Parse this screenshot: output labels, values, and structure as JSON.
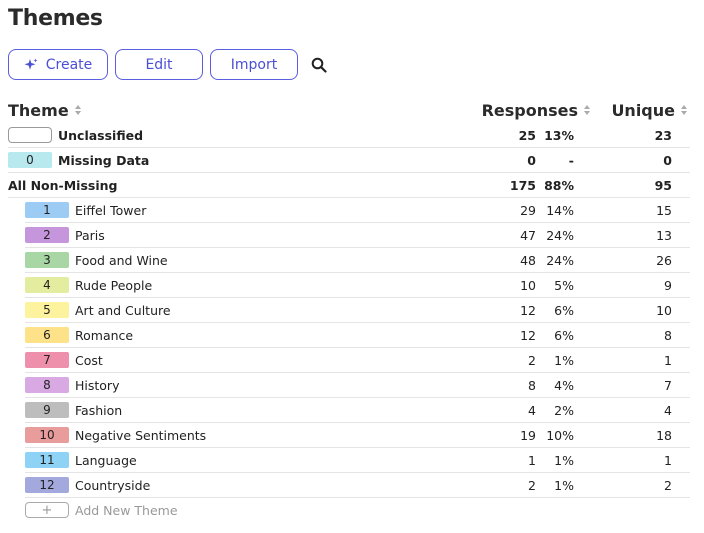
{
  "page": {
    "title": "Themes"
  },
  "toolbar": {
    "create_label": "Create",
    "edit_label": "Edit",
    "import_label": "Import",
    "search_icon": "search-icon",
    "accent": "#5a5ee0"
  },
  "header": {
    "theme": "Theme",
    "responses": "Responses",
    "unique": "Unique"
  },
  "top_rows": [
    {
      "label": "Unclassified",
      "code": "",
      "responses": "25",
      "pct": "13%",
      "unique": "23",
      "color": "#ffffff"
    },
    {
      "label": "Missing Data",
      "code": "0",
      "responses": "0",
      "pct": "-",
      "unique": "0",
      "color": "#b7e9ee"
    }
  ],
  "all_non_missing": {
    "label": "All Non-Missing",
    "responses": "175",
    "pct": "88%",
    "unique": "95"
  },
  "themes": [
    {
      "code": "1",
      "label": "Eiffel Tower",
      "responses": "29",
      "pct": "14%",
      "unique": "15",
      "color": "#9ccbf3"
    },
    {
      "code": "2",
      "label": "Paris",
      "responses": "47",
      "pct": "24%",
      "unique": "13",
      "color": "#c596dc"
    },
    {
      "code": "3",
      "label": "Food and Wine",
      "responses": "48",
      "pct": "24%",
      "unique": "26",
      "color": "#a9d6a5"
    },
    {
      "code": "4",
      "label": "Rude People",
      "responses": "10",
      "pct": "5%",
      "unique": "9",
      "color": "#e3ec9f"
    },
    {
      "code": "5",
      "label": "Art and Culture",
      "responses": "12",
      "pct": "6%",
      "unique": "10",
      "color": "#fdf29d"
    },
    {
      "code": "6",
      "label": "Romance",
      "responses": "12",
      "pct": "6%",
      "unique": "8",
      "color": "#fde28a"
    },
    {
      "code": "7",
      "label": "Cost",
      "responses": "2",
      "pct": "1%",
      "unique": "1",
      "color": "#ee8fab"
    },
    {
      "code": "8",
      "label": "History",
      "responses": "8",
      "pct": "4%",
      "unique": "7",
      "color": "#d9a9e3"
    },
    {
      "code": "9",
      "label": "Fashion",
      "responses": "4",
      "pct": "2%",
      "unique": "4",
      "color": "#bdbdbd"
    },
    {
      "code": "10",
      "label": "Negative Sentiments",
      "responses": "19",
      "pct": "10%",
      "unique": "18",
      "color": "#e99c9c"
    },
    {
      "code": "11",
      "label": "Language",
      "responses": "1",
      "pct": "1%",
      "unique": "1",
      "color": "#8ed3f5"
    },
    {
      "code": "12",
      "label": "Countryside",
      "responses": "2",
      "pct": "1%",
      "unique": "2",
      "color": "#a3a9dd"
    }
  ],
  "add_theme": {
    "icon": "+",
    "label": "Add New Theme"
  }
}
